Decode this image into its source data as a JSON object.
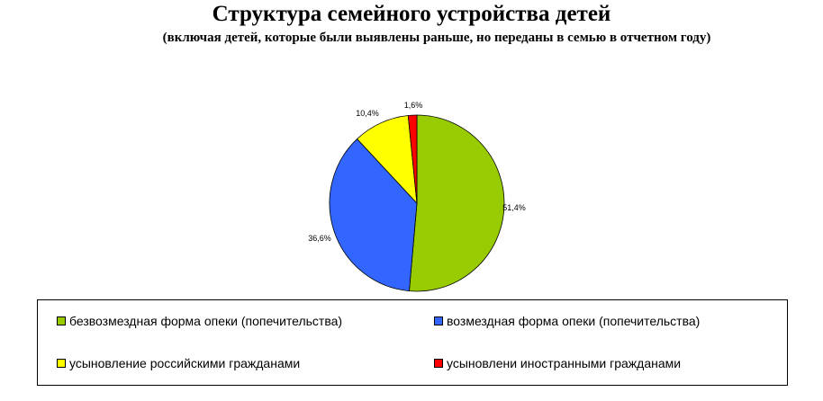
{
  "chart_data": {
    "type": "pie",
    "title": "Структура семейного устройства детей",
    "subtitle": "(включая детей, которые были выявлены раньше, но переданы в семью в отчетном году)",
    "slices": [
      {
        "name": "безвозмездная форма опеки (попечительства)",
        "value": 51.4,
        "label": "51,4%",
        "color": "#99cc00"
      },
      {
        "name": "возмездная форма опеки (попечительства)",
        "value": 36.6,
        "label": "36,6%",
        "color": "#3366ff"
      },
      {
        "name": "усыновление российскими гражданами",
        "value": 10.4,
        "label": "10,4%",
        "color": "#ffff00"
      },
      {
        "name": "усыновлени иностранными гражданами",
        "value": 1.6,
        "label": "1,6%",
        "color": "#ff0000"
      }
    ],
    "legend_position": "bottom"
  }
}
